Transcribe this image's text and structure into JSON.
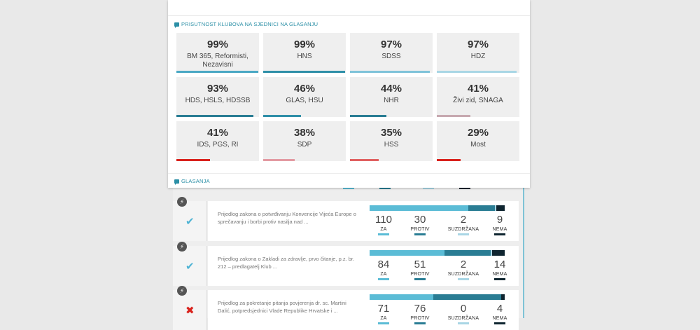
{
  "sections": {
    "attendance_title": "PRISUTNOST KLUBOVA NA SJEDNICI NA GLASANJU",
    "votes_title": "GLASANJA"
  },
  "colors": {
    "za": "#5bbcd6",
    "protiv": "#2a7d94",
    "suzdrzana": "#a9d6e5",
    "nema": "#0f2530",
    "accepted": "#4db3d4",
    "rejected": "#d9221c"
  },
  "clubs": [
    {
      "percent": "99%",
      "name": "BM 365, Reformisti, Nezavisni",
      "level": 0.99,
      "bar_color": "#4aa8c4"
    },
    {
      "percent": "99%",
      "name": "HNS",
      "level": 0.99,
      "bar_color": "#2f8fa8"
    },
    {
      "percent": "97%",
      "name": "SDSS",
      "level": 0.97,
      "bar_color": "#7fc3d9"
    },
    {
      "percent": "97%",
      "name": "HDZ",
      "level": 0.97,
      "bar_color": "#a9d6e5"
    },
    {
      "percent": "93%",
      "name": "HDS, HSLS, HDSSB",
      "level": 0.93,
      "bar_color": "#2a7d94"
    },
    {
      "percent": "46%",
      "name": "GLAS, HSU",
      "level": 0.46,
      "bar_color": "#2f8fa8"
    },
    {
      "percent": "44%",
      "name": "NHR",
      "level": 0.44,
      "bar_color": "#2a7d94"
    },
    {
      "percent": "41%",
      "name": "Živi zid, SNAGA",
      "level": 0.41,
      "bar_color": "#c7a9b0"
    },
    {
      "percent": "41%",
      "name": "IDS, PGS, RI",
      "level": 0.41,
      "bar_color": "#d9221c"
    },
    {
      "percent": "38%",
      "name": "SDP",
      "level": 0.38,
      "bar_color": "#e39aa2"
    },
    {
      "percent": "35%",
      "name": "HSS",
      "level": 0.35,
      "bar_color": "#e06060"
    },
    {
      "percent": "29%",
      "name": "Most",
      "level": 0.29,
      "bar_color": "#d9221c"
    }
  ],
  "votes": [
    {
      "status": "accepted",
      "status_glyph": "✔",
      "description": "Prijedlog zakona o potvrđivanju Konvencije Vijeća Europe o sprečavanju i borbi protiv nasilja nad ...",
      "za": "110",
      "protiv": "30",
      "suzdrzana": "2",
      "nema": "9"
    },
    {
      "status": "accepted",
      "status_glyph": "✔",
      "description": "Prijedlog zakona o Zakladi za zdravlje, prvo čitanje, p.z. br. 212 – predlagatelj Klub ...",
      "za": "84",
      "protiv": "51",
      "suzdrzana": "2",
      "nema": "14"
    },
    {
      "status": "rejected",
      "status_glyph": "✖",
      "description": "Prijedlog za pokretanje pitanja povjerenja dr. sc. Martini Dalić, potpredsjednici Vlade Republike Hrvatske i ...",
      "za": "71",
      "protiv": "76",
      "suzdrzana": "0",
      "nema": "4"
    }
  ],
  "labels": {
    "za": "ZA",
    "protiv": "PROTIV",
    "suzdrzana": "SUZDRŽANA",
    "nema": "NEMA"
  },
  "lightning_glyph": "⚡"
}
